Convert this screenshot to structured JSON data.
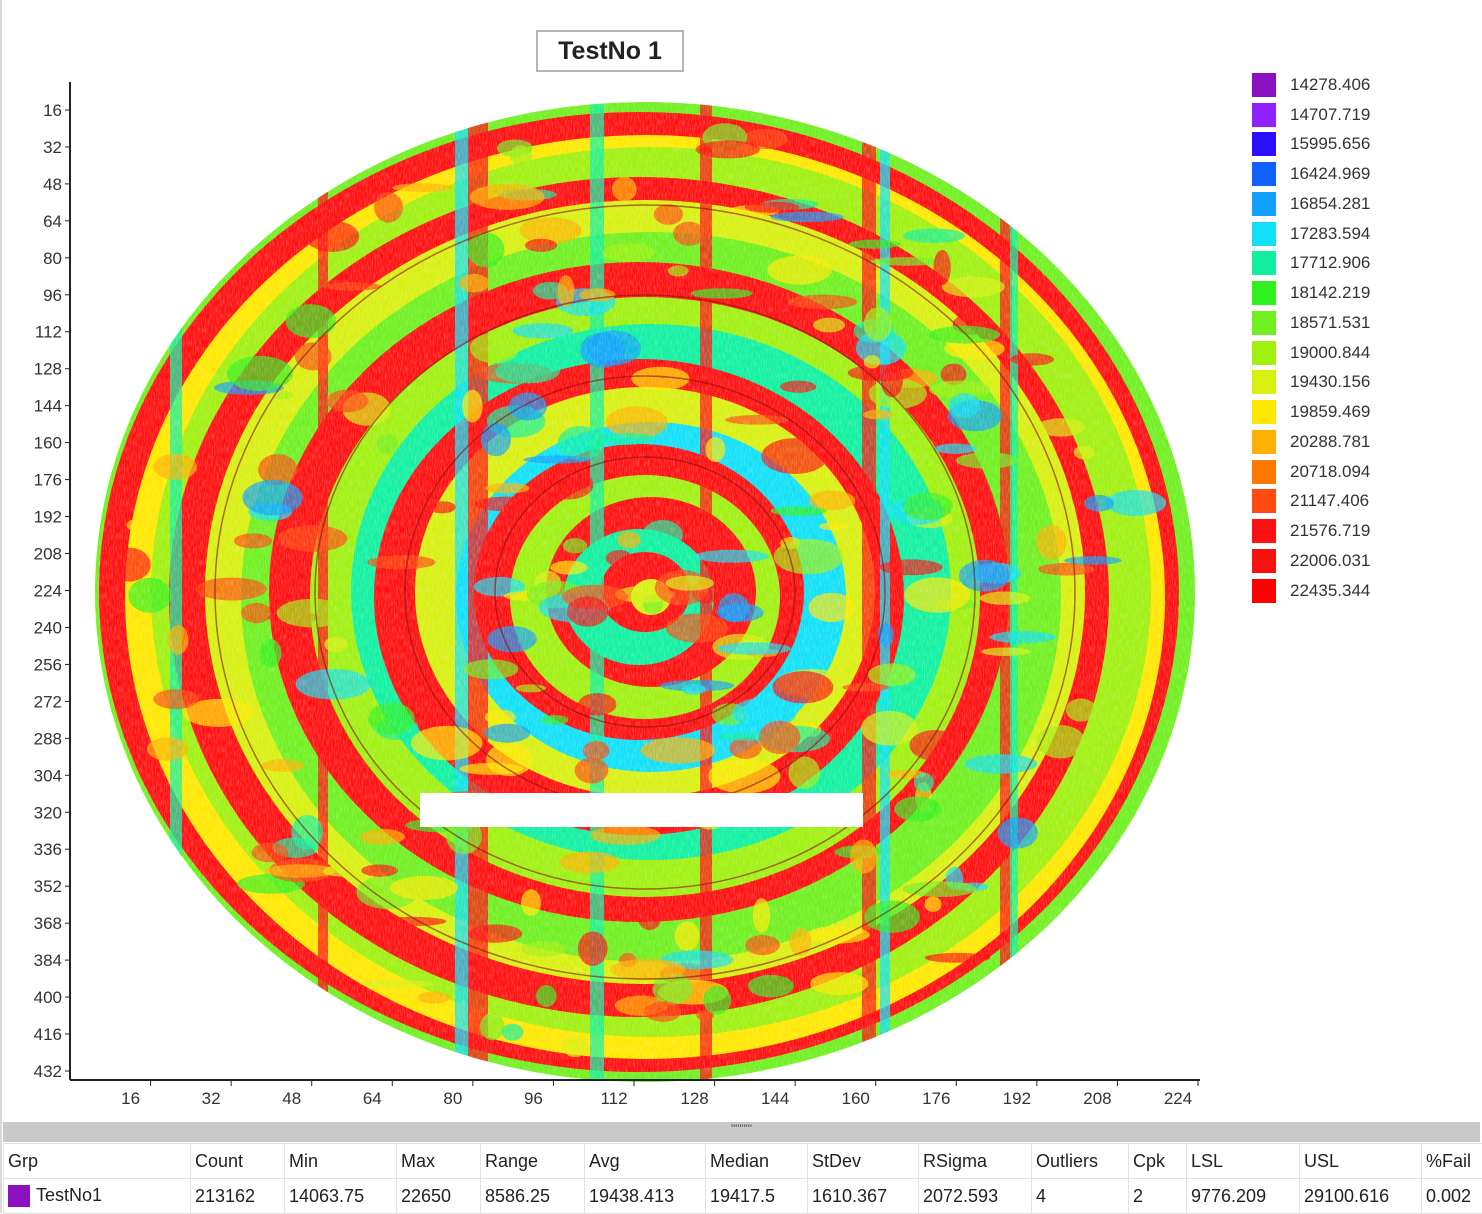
{
  "chart_data": {
    "type": "heatmap",
    "title": "TestNo 1",
    "x_ticks": [
      16,
      32,
      48,
      64,
      80,
      96,
      112,
      128,
      144,
      160,
      176,
      192,
      208,
      224
    ],
    "y_ticks": [
      16,
      32,
      48,
      64,
      80,
      96,
      112,
      128,
      144,
      160,
      176,
      192,
      208,
      224,
      240,
      256,
      272,
      288,
      304,
      320,
      336,
      352,
      368,
      384,
      400,
      416,
      432
    ],
    "xlim": [
      0,
      224
    ],
    "ylim": [
      0,
      432
    ],
    "legend_position": "right",
    "legend": [
      {
        "label": "14278.406",
        "color": "#8a10c0"
      },
      {
        "label": "14707.719",
        "color": "#8f20ff"
      },
      {
        "label": "15995.656",
        "color": "#2a10ff"
      },
      {
        "label": "16424.969",
        "color": "#1060ff"
      },
      {
        "label": "16854.281",
        "color": "#10a0ff"
      },
      {
        "label": "17283.594",
        "color": "#10e0f8"
      },
      {
        "label": "17712.906",
        "color": "#10f0a0"
      },
      {
        "label": "18142.219",
        "color": "#30f020"
      },
      {
        "label": "18571.531",
        "color": "#70f020"
      },
      {
        "label": "19000.844",
        "color": "#a0f010"
      },
      {
        "label": "19430.156",
        "color": "#d8f010"
      },
      {
        "label": "19859.469",
        "color": "#ffe800"
      },
      {
        "label": "20288.781",
        "color": "#ffb000"
      },
      {
        "label": "20718.094",
        "color": "#ff7a00"
      },
      {
        "label": "21147.406",
        "color": "#ff4a10"
      },
      {
        "label": "21576.719",
        "color": "#ff1010"
      },
      {
        "label": "22006.031",
        "color": "#f81010"
      },
      {
        "label": "22435.344",
        "color": "#ff0000"
      }
    ]
  },
  "stats": {
    "headers": [
      "Grp",
      "Count",
      "Min",
      "Max",
      "Range",
      "Avg",
      "Median",
      "StDev",
      "RSigma",
      "Outliers",
      "Cpk",
      "LSL",
      "USL",
      "%Fail"
    ],
    "row": {
      "grp": "TestNo1",
      "grp_color": "#8a10c0",
      "values": [
        "213162",
        "14063.75",
        "22650",
        "8586.25",
        "19438.413",
        "19417.5",
        "1610.367",
        "2072.593",
        "4",
        "2",
        "9776.209",
        "29100.616",
        "0.002"
      ]
    }
  },
  "splitter_grip": "''''''''''"
}
